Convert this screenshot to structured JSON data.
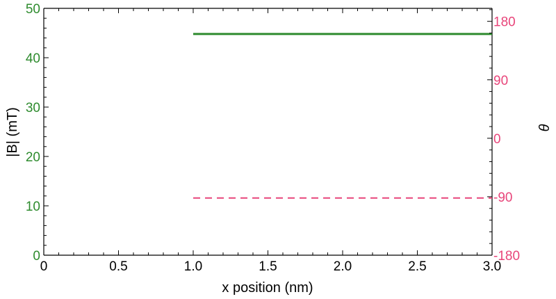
{
  "chart_data": {
    "type": "line",
    "xlabel": "x position (nm)",
    "ylabel_left": "|B| (mT)",
    "ylabel_right": "θ",
    "xlim": [
      0,
      3
    ],
    "ylim_left": [
      0,
      50
    ],
    "ylim_right": [
      -180,
      200
    ],
    "x_ticks": [
      {
        "v": 0,
        "label": "0"
      },
      {
        "v": 0.5,
        "label": "0.5"
      },
      {
        "v": 1,
        "label": "1.0"
      },
      {
        "v": 1.5,
        "label": "1.5"
      },
      {
        "v": 2,
        "label": "2.0"
      },
      {
        "v": 2.5,
        "label": "2.5"
      },
      {
        "v": 3,
        "label": "3.0"
      }
    ],
    "y_left_ticks": [
      {
        "v": 0,
        "label": "0"
      },
      {
        "v": 10,
        "label": "10"
      },
      {
        "v": 20,
        "label": "20"
      },
      {
        "v": 30,
        "label": "30"
      },
      {
        "v": 40,
        "label": "40"
      },
      {
        "v": 50,
        "label": "50"
      }
    ],
    "y_right_ticks": [
      {
        "v": -180,
        "label": "-180"
      },
      {
        "v": -90,
        "label": "-90"
      },
      {
        "v": 0,
        "label": "0"
      },
      {
        "v": 90,
        "label": "90"
      },
      {
        "v": 180,
        "label": "180"
      }
    ],
    "series": [
      {
        "axis": "left",
        "style": "solid",
        "color": "#2e8b2e",
        "x": [
          1.0,
          3.0
        ],
        "y": [
          44.8,
          44.8
        ]
      },
      {
        "axis": "right",
        "style": "dashed",
        "color": "#e8457a",
        "x": [
          1.0,
          3.0
        ],
        "y": [
          -92,
          -92
        ]
      }
    ],
    "colors": {
      "left_axis": "#2e8b2e",
      "right_axis": "#e8457a",
      "frame": "#000000"
    },
    "grid": false
  }
}
